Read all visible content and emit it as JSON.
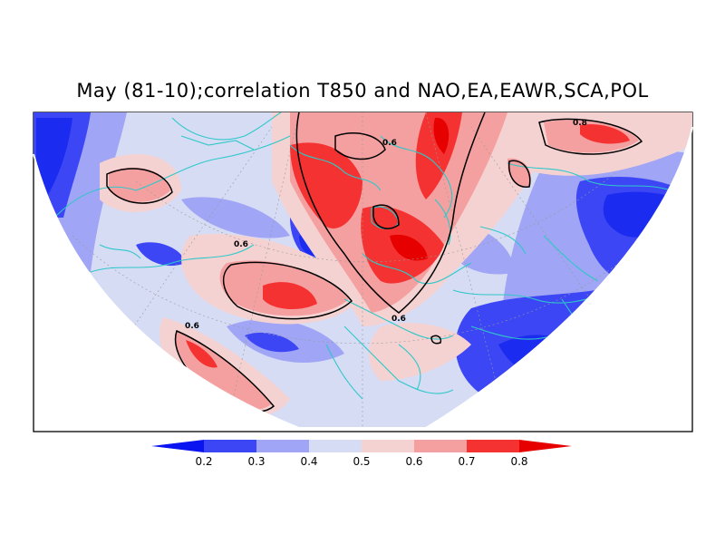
{
  "title": "May (81-10);correlation T850 and NAO,EA,EAWR,SCA,POL",
  "contour_labels": [
    "0.6",
    "0.6",
    "0.6",
    "0.6",
    "0.8"
  ],
  "colorbar": {
    "ticks": [
      "0.2",
      "0.3",
      "0.4",
      "0.5",
      "0.6",
      "0.7",
      "0.8"
    ],
    "colors": [
      "#0a14f0",
      "#3c46f5",
      "#a0a5f5",
      "#d7dcf5",
      "#f5d2d2",
      "#f5a0a0",
      "#f53232",
      "#e60000"
    ]
  },
  "palette": {
    "deep_blue": "#1b2cf0",
    "blue": "#3c46f5",
    "mid_blue": "#a0a5f5",
    "light_blue": "#d7dcf5",
    "light_red": "#f5d2d2",
    "pink": "#f5a0a0",
    "red": "#f53232",
    "coast": "#2ec8c8"
  }
}
